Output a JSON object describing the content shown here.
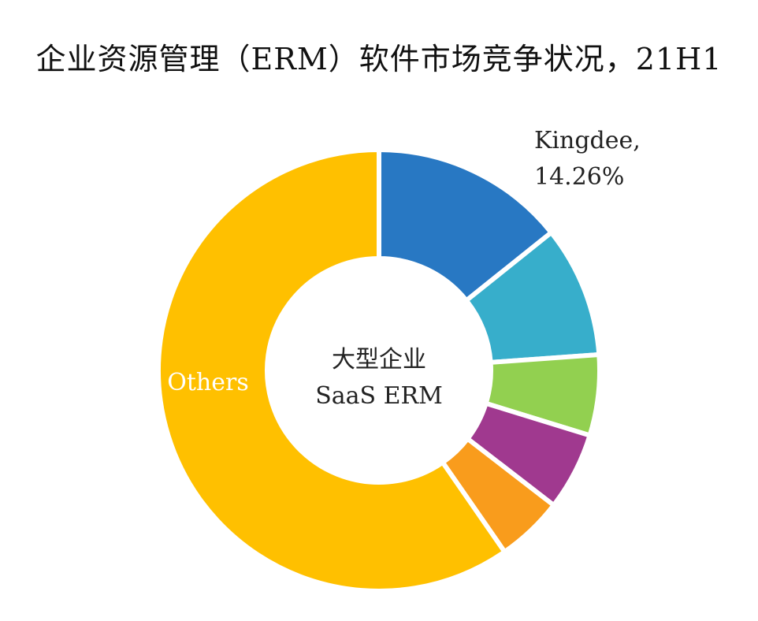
{
  "chart_data": {
    "type": "pie",
    "title": "企业资源管理（ERM）软件市场竞争状况，21H1",
    "center_label": [
      "大型企业",
      "SaaS ERM"
    ],
    "donut": true,
    "slices": [
      {
        "name": "Kingdee",
        "label": [
          "Kingdee,",
          "14.26%"
        ],
        "value": 14.26,
        "color": "#2878C3"
      },
      {
        "name": "",
        "value": 9.6,
        "color": "#37AECB"
      },
      {
        "name": "",
        "value": 5.9,
        "color": "#92D050"
      },
      {
        "name": "",
        "value": 5.7,
        "color": "#A0398F"
      },
      {
        "name": "",
        "value": 4.9,
        "color": "#F99C1C"
      },
      {
        "name": "Others",
        "label": [
          "Others"
        ],
        "value": 59.64,
        "color": "#FFC000"
      }
    ]
  }
}
